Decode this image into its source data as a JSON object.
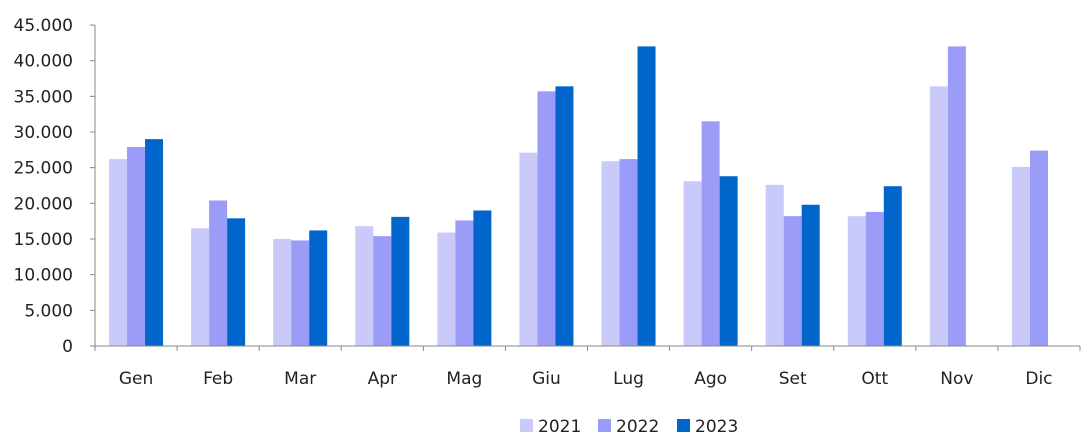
{
  "chart_data": {
    "type": "bar",
    "title": "",
    "xlabel": "",
    "ylabel": "",
    "categories": [
      "Gen",
      "Feb",
      "Mar",
      "Apr",
      "Mag",
      "Giu",
      "Lug",
      "Ago",
      "Set",
      "Ott",
      "Nov",
      "Dic"
    ],
    "ylim": [
      0,
      45000
    ],
    "yticks": [
      0,
      5000,
      10000,
      15000,
      20000,
      25000,
      30000,
      35000,
      40000,
      45000
    ],
    "ytick_labels": [
      "0",
      "5.000",
      "10.000",
      "15.000",
      "20.000",
      "25.000",
      "30.000",
      "35.000",
      "40.000",
      "45.000"
    ],
    "grid": false,
    "legend_position": "bottom",
    "series": [
      {
        "name": "2021",
        "color": "#c9c9fa",
        "values": [
          26200,
          16500,
          15000,
          16800,
          15900,
          27100,
          25900,
          23100,
          22600,
          18200,
          36400,
          25100
        ]
      },
      {
        "name": "2022",
        "color": "#9b9bf8",
        "values": [
          27900,
          20400,
          14800,
          15400,
          17600,
          35700,
          26200,
          31500,
          18200,
          18800,
          42000,
          27400
        ]
      },
      {
        "name": "2023",
        "color": "#0066cc",
        "values": [
          29000,
          17900,
          16200,
          18100,
          19000,
          36400,
          42000,
          23800,
          19800,
          22400,
          null,
          null
        ]
      }
    ]
  }
}
